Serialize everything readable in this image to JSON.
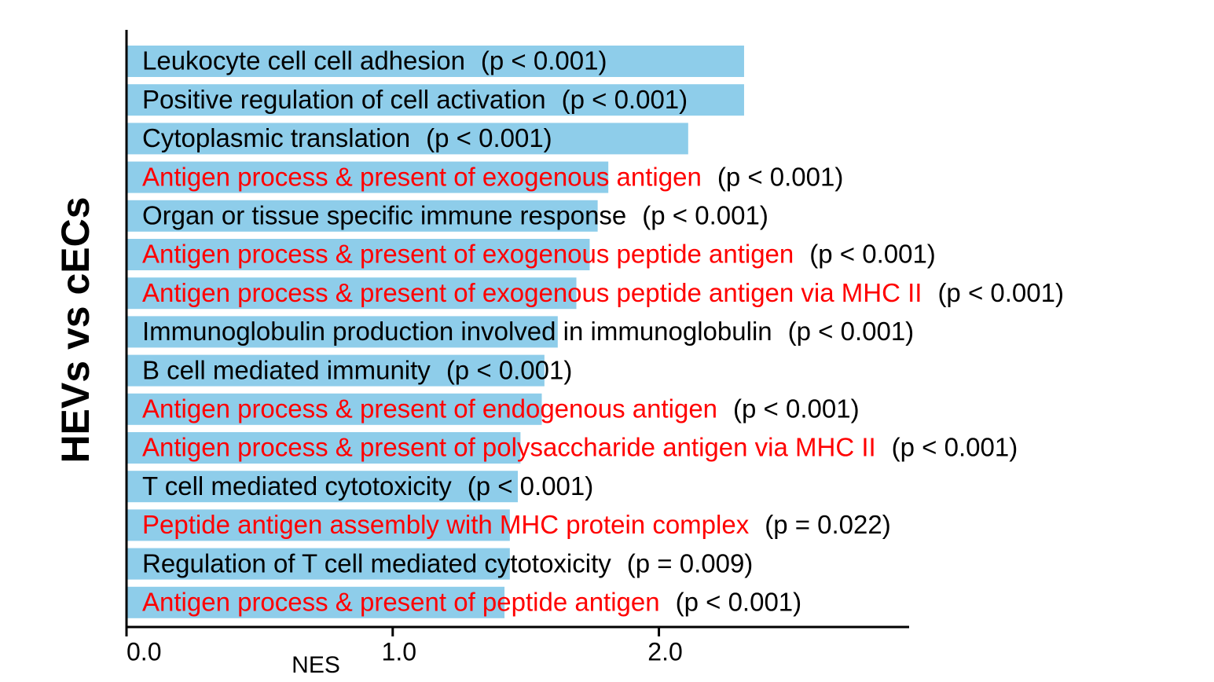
{
  "chart_data": {
    "type": "barh",
    "y_label": "HEVs vs cECs",
    "x_label": "NES",
    "categories": [
      "Leukocyte cell cell adhesion",
      "Positive regulation of cell activation",
      "Cytoplasmic translation",
      "Antigen process & present of exogenous antigen",
      "Organ or tissue specific immune response",
      "Antigen process & present of exogenous peptide antigen",
      "Antigen process & present of exogenous peptide antigen via MHC II",
      "Immunoglobulin production involved in immunoglobulin",
      "B cell mediated immunity",
      "Antigen process & present of endogenous antigen",
      "Antigen process & present of polysaccharide antigen via MHC II",
      "T cell mediated cytotoxicity",
      "Peptide antigen assembly with MHC protein complex",
      "Regulation of T cell mediated cytotoxicity",
      "Antigen process & present of peptide antigen"
    ],
    "category_colors": [
      "#000000",
      "#000000",
      "#000000",
      "#ff0000",
      "#000000",
      "#ff0000",
      "#ff0000",
      "#000000",
      "#000000",
      "#ff0000",
      "#ff0000",
      "#000000",
      "#ff0000",
      "#000000",
      "#ff0000"
    ],
    "p_labels": [
      "(p < 0.001)",
      "(p < 0.001)",
      "(p < 0.001)",
      "(p < 0.001)",
      "(p < 0.001)",
      "(p < 0.001)",
      "(p < 0.001)",
      "(p < 0.001)",
      "(p < 0.001)",
      "(p < 0.001)",
      "(p < 0.001)",
      "(p < 0.001)",
      "(p = 0.022)",
      "(p = 0.009)",
      "(p < 0.001)"
    ],
    "values": [
      2.32,
      2.32,
      2.11,
      1.81,
      1.77,
      1.74,
      1.69,
      1.62,
      1.57,
      1.56,
      1.48,
      1.47,
      1.44,
      1.44,
      1.42
    ],
    "color": "#8ecdea",
    "xlim": [
      0,
      2.94
    ],
    "xticks": [
      {
        "value": 0,
        "label": "0.0"
      },
      {
        "value": 1,
        "label": "1.0"
      },
      {
        "value": 2,
        "label": "2.0"
      }
    ]
  }
}
